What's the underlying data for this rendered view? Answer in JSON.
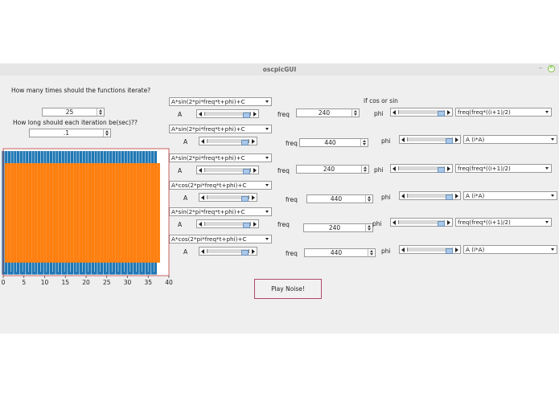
{
  "window": {
    "title": "oscpicGUI",
    "minimize": "–"
  },
  "iterations": {
    "label": "How many times should the functions iterate?",
    "value": "25"
  },
  "duration": {
    "label": "How long should each iteration be(sec)??",
    "value": ".1"
  },
  "cos_sin_label": "if cos or sin",
  "rows": [
    {
      "func": "A*sin(2*pi*freq*t+phi)+C",
      "a_label": "A",
      "freq_label": "freq",
      "freq": "240",
      "phi_label": "phi",
      "phi_mode": "freq(freq*((i+1)/2)",
      "a_level": 0.95,
      "phi_level": 0.97
    },
    {
      "func": "A*sin(2*pi*freq*t+phi)+C",
      "a_label": "A",
      "freq_label": "freq",
      "freq": "440",
      "phi_label": "phi",
      "phi_mode": "A (i*A)",
      "a_level": 0.95,
      "phi_level": 0.97
    },
    {
      "func": "A*sin(2*pi*freq*t+phi)+C",
      "a_label": "A",
      "freq_label": "freq",
      "freq": "240",
      "phi_label": "phi",
      "phi_mode": "freq(freq*((i+1)/2)",
      "a_level": 0.95,
      "phi_level": 0.97
    },
    {
      "func": "A*cos(2*pi*freq*t+phi)+C",
      "a_label": "A",
      "freq_label": "freq",
      "freq": "440",
      "phi_label": "phi",
      "phi_mode": "A (i*A)",
      "a_level": 0.95,
      "phi_level": 0.97
    },
    {
      "func": "A*sin(2*pi*freq*t+phi)+C",
      "a_label": "A",
      "freq_label": "freq",
      "freq": "240",
      "phi_label": "phi",
      "phi_mode": "freq(freq*((i+1)/2)",
      "a_level": 0.95,
      "phi_level": 0.97
    },
    {
      "func": "A*cos(2*pi*freq*t+phi)+C",
      "a_label": "A",
      "freq_label": "freq",
      "freq": "440",
      "phi_label": "phi",
      "phi_mode": "A (i*A)",
      "a_level": 0.95,
      "phi_level": 0.97
    }
  ],
  "play_button": "Play Noise!",
  "chart_data": {
    "type": "line",
    "xlim": [
      0,
      40
    ],
    "xticks": [
      "0",
      "5",
      "10",
      "15",
      "20",
      "25",
      "30",
      "35",
      "40"
    ],
    "grid": false,
    "series": [
      {
        "color": "#1f77b4",
        "x_end": 37.5,
        "cycles": 26
      },
      {
        "color": "#ff7f0e",
        "x_end": 37.5,
        "cycles": 26
      }
    ]
  },
  "colors": {
    "accent": "#a9c8ea",
    "play_border": "#b04a66",
    "close": "#7ac142"
  }
}
